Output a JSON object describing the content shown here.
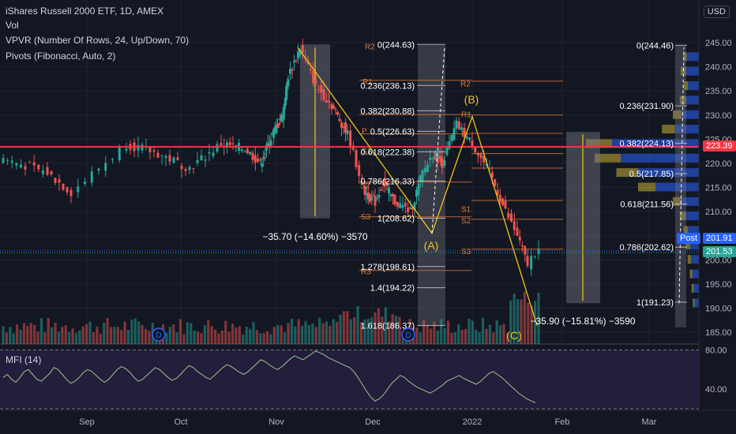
{
  "legend": {
    "title": "iShares Russell 2000 ETF, 1D, AMEX",
    "vol": "Vol",
    "vpvr": "VPVR (Number Of Rows, 24, Up/Down, 70)",
    "pivots": "Pivots (Fibonacci, Auto, 2)",
    "mfi": "MFI (14)"
  },
  "currency": "USD",
  "colors": {
    "up": "#26a69a",
    "down": "#ef5350",
    "background": "#131722",
    "red_line": "#f23645",
    "fib": "#f0c419",
    "pivot": "#e07b39",
    "mfi_bg": "#2a2245"
  },
  "price_axis": {
    "ticks": [
      "245.00",
      "240.00",
      "235.00",
      "230.00",
      "225.00",
      "220.00",
      "215.00",
      "210.00",
      "205.00",
      "200.00",
      "195.00",
      "190.00",
      "185.00"
    ]
  },
  "mfi_axis": {
    "ticks": [
      "80.00",
      "40.00"
    ]
  },
  "time_axis": {
    "labels": [
      "Sep",
      "Oct",
      "Nov",
      "Dec",
      "2022",
      "Feb",
      "Mar"
    ]
  },
  "price_badges": {
    "red_level": "223.39",
    "post_label": "Post",
    "post_value": "201.91",
    "last": "201.53"
  },
  "chart_data": [
    {
      "type": "candlestick",
      "title": "iShares Russell 2000 ETF, 1D, AMEX",
      "ylim": [
        183,
        249
      ],
      "horizontal_level": 223.39,
      "fib_retracement_left": [
        {
          "label": "0(244.63)"
        },
        {
          "label": "0.236(236.13)"
        },
        {
          "label": "0.382(230.88)"
        },
        {
          "label": "0.5(226.63)"
        },
        {
          "label": "0.618(222.38)"
        },
        {
          "label": "0.786(216.33)"
        },
        {
          "label": "1(208.62)"
        },
        {
          "label": "1.278(198.61)"
        },
        {
          "label": "1.4(194.22)"
        },
        {
          "label": "1.618(186.37)"
        }
      ],
      "fib_retracement_right": [
        {
          "label": "0(244.46)"
        },
        {
          "label": "0.236(231.90)"
        },
        {
          "label": "0.382(224.13)"
        },
        {
          "label": "0.5(217.85)"
        },
        {
          "label": "0.618(211.56)"
        },
        {
          "label": "0.786(202.62)"
        },
        {
          "label": "1(191.23)"
        }
      ],
      "pivot_labels": [
        "R2",
        "R1",
        "P",
        "S1",
        "S2",
        "S3",
        "R3",
        "R2",
        "R1",
        "P",
        "S1",
        "S2",
        "S3"
      ],
      "wave_labels": [
        "(A)",
        "(B)",
        "(C)"
      ],
      "measure_labels": [
        "−35.70 (−14.60%) −3570",
        "−35.90 (−15.81%) −3590"
      ],
      "dividend_markers": [
        "D",
        "D"
      ]
    },
    {
      "type": "line",
      "title": "MFI (14)",
      "ylim": [
        20,
        82
      ],
      "bands": [
        80,
        20
      ],
      "y": [
        52,
        55,
        50,
        47,
        52,
        58,
        60,
        55,
        50,
        48,
        52,
        56,
        62,
        60,
        55,
        50,
        46,
        48,
        52,
        57,
        60,
        58,
        54,
        50,
        47,
        50,
        55,
        60,
        63,
        61,
        57,
        52,
        48,
        50,
        54,
        58,
        62,
        60,
        56,
        52,
        49,
        51,
        55,
        60,
        64,
        62,
        58,
        55,
        52,
        50,
        54,
        58,
        62,
        65,
        63,
        60,
        57,
        55,
        58,
        62,
        66,
        70,
        68,
        65,
        62,
        60,
        63,
        67,
        71,
        74,
        72,
        70,
        73,
        76,
        79,
        77,
        75,
        72,
        70,
        68,
        66,
        64,
        62,
        58,
        52,
        45,
        38,
        32,
        28,
        30,
        34,
        40,
        46,
        50,
        54,
        52,
        48,
        45,
        42,
        40,
        38,
        36,
        38,
        41,
        44,
        48,
        50,
        52,
        54,
        51,
        49,
        47,
        45,
        48,
        52,
        56,
        58,
        55,
        52,
        48,
        44,
        40,
        36,
        33,
        30,
        28,
        26
      ]
    }
  ]
}
